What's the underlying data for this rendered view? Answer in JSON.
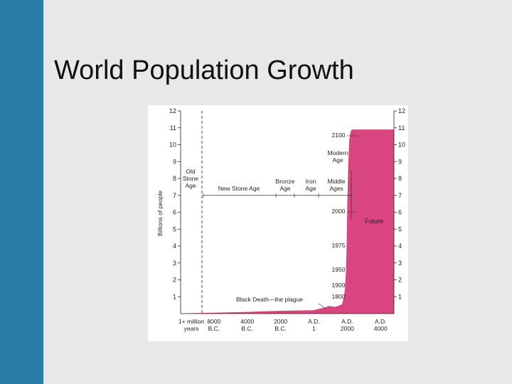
{
  "slide": {
    "title": "World Population Growth"
  },
  "colors": {
    "side_bar": "#2a7da6",
    "area_fill": "#d9457f",
    "background": "#e8e8e8"
  },
  "chart_data": {
    "type": "area",
    "ylabel": "Billions of people",
    "ylim": [
      0,
      12
    ],
    "y_ticks": [
      "1",
      "2",
      "3",
      "4",
      "5",
      "6",
      "7",
      "8",
      "9",
      "10",
      "11",
      "12"
    ],
    "x_tick_labels": [
      [
        "1+ million",
        "years"
      ],
      [
        "8000",
        "B.C."
      ],
      [
        "4000",
        "B.C."
      ],
      [
        "2000",
        "B.C."
      ],
      [
        "A.D.",
        "1"
      ],
      [
        "A.D.",
        "2000"
      ],
      [
        "A.D.",
        "4000"
      ]
    ],
    "series": [
      {
        "points": [
          [
            0,
            0.01
          ],
          [
            1,
            0.05
          ],
          [
            2,
            0.1
          ],
          [
            3,
            0.17
          ],
          [
            4,
            0.2
          ],
          [
            4.1,
            0.26
          ],
          [
            4.3,
            0.35
          ],
          [
            4.45,
            0.45
          ],
          [
            4.62,
            0.4
          ],
          [
            4.72,
            0.45
          ],
          [
            4.84,
            0.55
          ],
          [
            4.9,
            1.0
          ],
          [
            4.93,
            1.5
          ],
          [
            4.96,
            2.5
          ],
          [
            4.98,
            4.0
          ],
          [
            5.0,
            6.5
          ],
          [
            5.03,
            9.0
          ],
          [
            5.06,
            10.3
          ],
          [
            5.1,
            10.8
          ],
          [
            5.14,
            10.9
          ],
          [
            5.5,
            10.9
          ],
          [
            6.4,
            10.9
          ]
        ]
      }
    ],
    "eras": [
      {
        "label": [
          "Old",
          "Stone",
          "Age"
        ]
      },
      {
        "label": [
          "New Stone Age"
        ]
      },
      {
        "label": [
          "Bronze",
          "Age"
        ]
      },
      {
        "label": [
          "Iron",
          "Age"
        ]
      },
      {
        "label": [
          "Middle",
          "Ages"
        ]
      },
      {
        "label": [
          "Modern",
          "Age"
        ]
      }
    ],
    "year_labels": [
      "2100",
      "2000",
      "1975",
      "1950",
      "1900",
      "1800"
    ],
    "future_label": "Future",
    "plague_label": "Black Death—the plague"
  }
}
